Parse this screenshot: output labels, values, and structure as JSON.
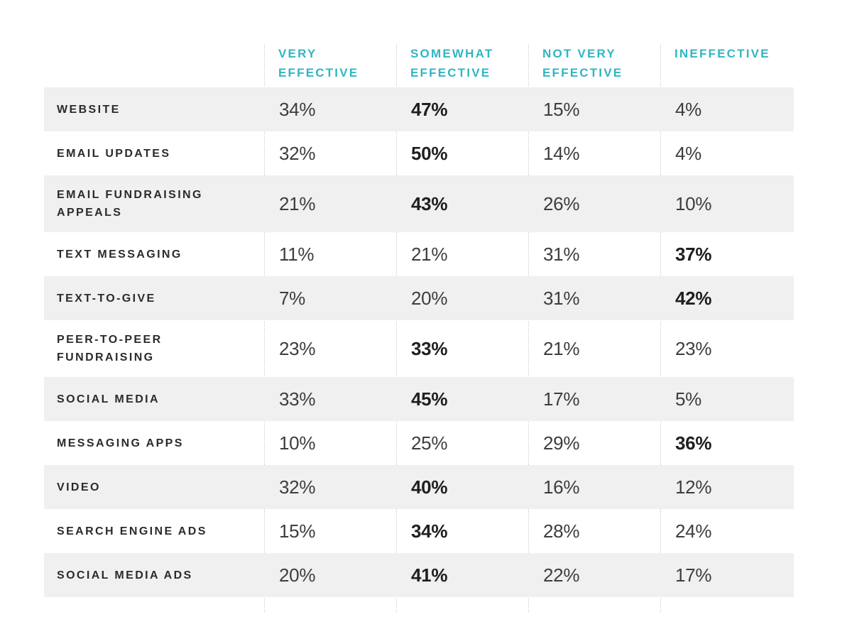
{
  "colors": {
    "accent": "#31b5c3",
    "row_shade": "#f0f0f0",
    "label_text": "#2b2b2b",
    "value_text": "#3d3d3d",
    "divider": "#b4b4b4"
  },
  "table": {
    "columns": [
      {
        "label": "VERY EFFECTIVE"
      },
      {
        "label": "SOMEWHAT EFFECTIVE"
      },
      {
        "label": "NOT VERY EFFECTIVE"
      },
      {
        "label": "INEFFECTIVE"
      }
    ],
    "rows": [
      {
        "label": "WEBSITE",
        "values": [
          "34%",
          "47%",
          "15%",
          "4%"
        ],
        "bold_index": 1
      },
      {
        "label": "EMAIL UPDATES",
        "values": [
          "32%",
          "50%",
          "14%",
          "4%"
        ],
        "bold_index": 1
      },
      {
        "label": "EMAIL FUNDRAISING APPEALS",
        "values": [
          "21%",
          "43%",
          "26%",
          "10%"
        ],
        "bold_index": 1
      },
      {
        "label": "TEXT MESSAGING",
        "values": [
          "11%",
          "21%",
          "31%",
          "37%"
        ],
        "bold_index": 3
      },
      {
        "label": "TEXT-TO-GIVE",
        "values": [
          "7%",
          "20%",
          "31%",
          "42%"
        ],
        "bold_index": 3
      },
      {
        "label": "PEER-TO-PEER FUNDRAISING",
        "values": [
          "23%",
          "33%",
          "21%",
          "23%"
        ],
        "bold_index": 1
      },
      {
        "label": "SOCIAL MEDIA",
        "values": [
          "33%",
          "45%",
          "17%",
          "5%"
        ],
        "bold_index": 1
      },
      {
        "label": "MESSAGING APPS",
        "values": [
          "10%",
          "25%",
          "29%",
          "36%"
        ],
        "bold_index": 3
      },
      {
        "label": "VIDEO",
        "values": [
          "32%",
          "40%",
          "16%",
          "12%"
        ],
        "bold_index": 1
      },
      {
        "label": "SEARCH ENGINE ADS",
        "values": [
          "15%",
          "34%",
          "28%",
          "24%"
        ],
        "bold_index": 1
      },
      {
        "label": "SOCIAL MEDIA ADS",
        "values": [
          "20%",
          "41%",
          "22%",
          "17%"
        ],
        "bold_index": 1
      }
    ]
  },
  "chart_data": {
    "type": "table",
    "columns": [
      "Very Effective",
      "Somewhat Effective",
      "Not Very Effective",
      "Ineffective"
    ],
    "row_labels": [
      "Website",
      "Email updates",
      "Email fundraising appeals",
      "Text messaging",
      "Text-to-give",
      "Peer-to-peer fundraising",
      "Social media",
      "Messaging apps",
      "Video",
      "Search engine ads",
      "Social media ads"
    ],
    "values_percent": [
      [
        34,
        47,
        15,
        4
      ],
      [
        32,
        50,
        14,
        4
      ],
      [
        21,
        43,
        26,
        10
      ],
      [
        11,
        21,
        31,
        37
      ],
      [
        7,
        20,
        31,
        42
      ],
      [
        23,
        33,
        21,
        23
      ],
      [
        33,
        45,
        17,
        5
      ],
      [
        10,
        25,
        29,
        36
      ],
      [
        32,
        40,
        16,
        12
      ],
      [
        15,
        34,
        28,
        24
      ],
      [
        20,
        41,
        22,
        17
      ]
    ],
    "emphasized_max_per_row": [
      47,
      50,
      43,
      37,
      42,
      33,
      45,
      36,
      40,
      34,
      41
    ],
    "layout": {
      "row_striping": "alternating gray/white starting gray",
      "column_separators": "dotted vertical lines",
      "header_color": "#31b5c3"
    }
  }
}
